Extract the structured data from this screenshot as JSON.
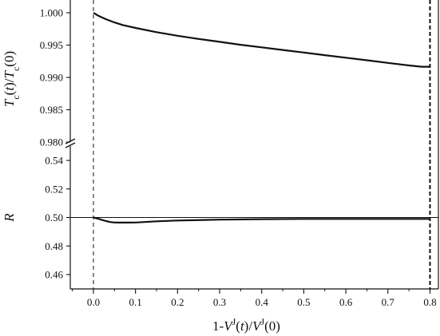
{
  "chart_data": [
    {
      "type": "line",
      "panel": "top",
      "ylabel": {
        "parts": [
          {
            "t": "T",
            "i": true
          },
          {
            "t": "c",
            "sub": true
          },
          {
            "t": "("
          },
          {
            "t": "t",
            "i": true
          },
          {
            "t": ")/"
          },
          {
            "t": "T",
            "i": true
          },
          {
            "t": "c",
            "sub": true
          },
          {
            "t": "(0)"
          }
        ]
      },
      "ylim": [
        0.98,
        1.0
      ],
      "yticks": [
        0.98,
        0.985,
        0.99,
        0.995,
        1.0
      ],
      "ytick_labels": [
        "0.980",
        "0.985",
        "0.990",
        "0.995",
        "1.000"
      ],
      "axis_break": true,
      "series": [
        {
          "x": [
            0.0,
            0.01,
            0.02,
            0.03,
            0.05,
            0.07,
            0.1,
            0.15,
            0.2,
            0.25,
            0.3,
            0.35,
            0.4,
            0.45,
            0.5,
            0.55,
            0.6,
            0.65,
            0.7,
            0.75,
            0.78,
            0.8
          ],
          "y": [
            1.0,
            0.9996,
            0.9993,
            0.999,
            0.9985,
            0.9981,
            0.99765,
            0.997,
            0.99645,
            0.99595,
            0.9955,
            0.99505,
            0.99465,
            0.99425,
            0.99385,
            0.99345,
            0.99305,
            0.99265,
            0.99225,
            0.99185,
            0.99165,
            0.99165
          ]
        }
      ]
    },
    {
      "type": "line",
      "panel": "bottom",
      "ylabel": {
        "parts": [
          {
            "t": "R",
            "i": true
          }
        ]
      },
      "ylim": [
        0.45,
        0.55
      ],
      "yticks": [
        0.46,
        0.48,
        0.5,
        0.52,
        0.54
      ],
      "ytick_labels": [
        "0.46",
        "0.48",
        "0.50",
        "0.52",
        "0.54"
      ],
      "reference_lines": [
        {
          "axis": "y",
          "value": 0.5,
          "style": "solid"
        }
      ],
      "series": [
        {
          "x": [
            0.0,
            0.01,
            0.02,
            0.03,
            0.04,
            0.05,
            0.06,
            0.08,
            0.1,
            0.15,
            0.2,
            0.3,
            0.4,
            0.5,
            0.6,
            0.7,
            0.8
          ],
          "y": [
            0.5,
            0.4993,
            0.4984,
            0.4975,
            0.4968,
            0.4965,
            0.4964,
            0.4964,
            0.4965,
            0.4973,
            0.4979,
            0.4985,
            0.4988,
            0.499,
            0.499,
            0.499,
            0.499
          ]
        }
      ]
    }
  ],
  "x_axis": {
    "label": {
      "parts": [
        {
          "t": "1-"
        },
        {
          "t": "V",
          "i": true
        },
        {
          "t": "J",
          "sup": true
        },
        {
          "t": "("
        },
        {
          "t": "t",
          "i": true
        },
        {
          "t": ")/"
        },
        {
          "t": "V",
          "i": true
        },
        {
          "t": "J",
          "sup": true
        },
        {
          "t": "(0)"
        }
      ]
    },
    "xlim": [
      -0.055,
      0.82
    ],
    "ticks": [
      0.0,
      0.1,
      0.2,
      0.3,
      0.4,
      0.5,
      0.6,
      0.7,
      0.8
    ],
    "tick_labels": [
      "0.0",
      "0.1",
      "0.2",
      "0.3",
      "0.4",
      "0.5",
      "0.6",
      "0.7",
      "0.8"
    ],
    "minor_ticks": [
      -0.05,
      0.05,
      0.15,
      0.25,
      0.35,
      0.45,
      0.55,
      0.65,
      0.75
    ],
    "reference_lines": [
      {
        "value": 0.0,
        "style": "dashed"
      },
      {
        "value": 0.8,
        "style": "dashed-bold"
      }
    ]
  },
  "colors": {
    "line": "#111111",
    "axis": "#111111"
  }
}
